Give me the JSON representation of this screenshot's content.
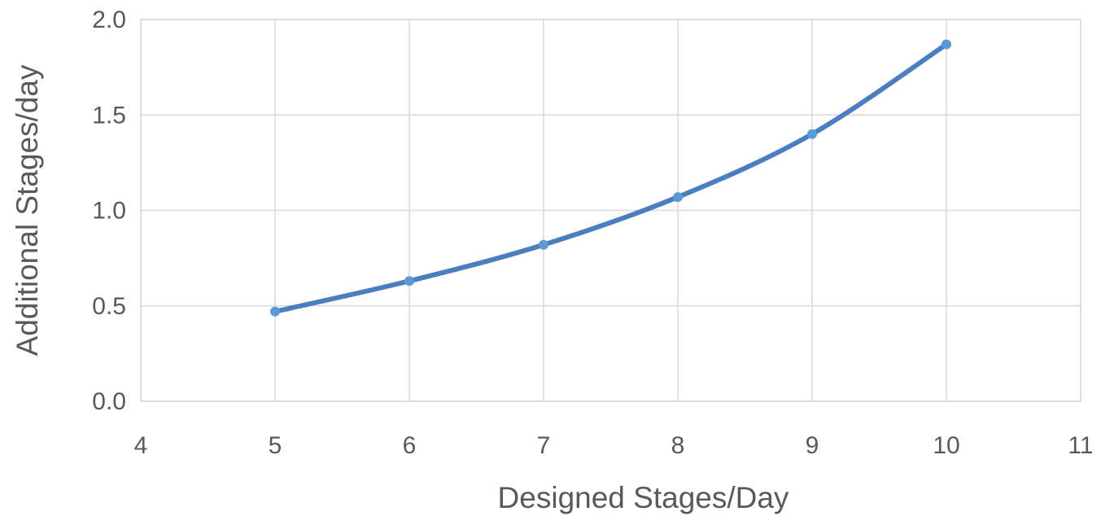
{
  "chart_data": {
    "type": "scatter",
    "title": "",
    "xlabel": "Designed Stages/Day",
    "ylabel": "Additional Stages/day",
    "xlim": [
      4,
      11
    ],
    "ylim": [
      0,
      2
    ],
    "x_ticks": [
      "4",
      "5",
      "6",
      "7",
      "8",
      "9",
      "10",
      "11"
    ],
    "y_ticks": [
      "0.0",
      "0.5",
      "1.0",
      "1.5",
      "2.0"
    ],
    "grid": true,
    "smooth": true,
    "series": [
      {
        "x": [
          5,
          6,
          7,
          8,
          9,
          10
        ],
        "y": [
          0.47,
          0.63,
          0.82,
          1.07,
          1.4,
          1.87
        ],
        "color": "#4a7ebf",
        "marker_color": "#5b9bd5"
      }
    ]
  }
}
